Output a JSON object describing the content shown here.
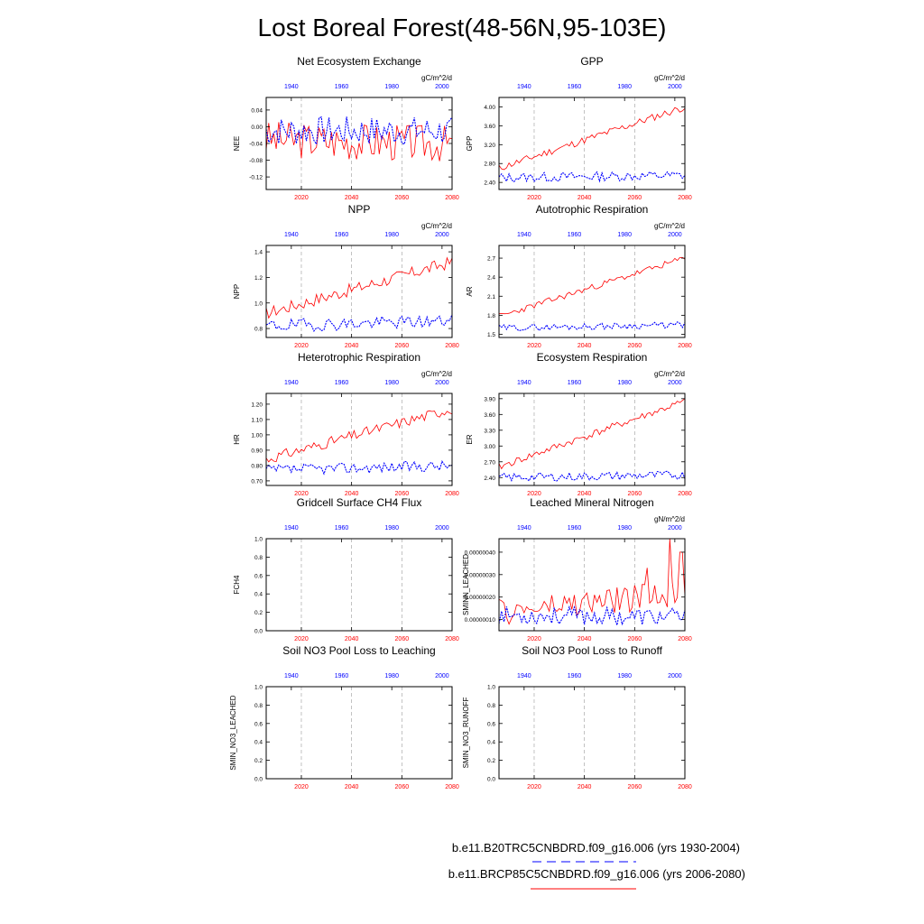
{
  "title": "Lost Boreal Forest(48-56N,95-103E)",
  "colors": {
    "hist": "#0000ff",
    "rcp": "#ff0000",
    "axis": "#000000",
    "grid": "#999999"
  },
  "axes": {
    "bottom_ticks": [
      2020,
      2040,
      2060,
      2080
    ],
    "bottom_tick_labels": [
      "2020",
      "2040",
      "2060",
      "2080"
    ],
    "bottom_range": [
      2006,
      2080
    ],
    "top_ticks": [
      1940,
      1960,
      1980,
      2000
    ],
    "top_tick_labels": [
      "1940",
      "1960",
      "1980",
      "2000"
    ],
    "top_range": [
      1930,
      2004
    ]
  },
  "legend": {
    "hist_label": "b.e11.B20TRC5CNBDRD.f09_g16.006 (yrs 1930-2004)",
    "rcp_label": "b.e11.BRCP85C5CNBDRD.f09_g16.006 (yrs 2006-2080)"
  },
  "chart_data": [
    {
      "type": "line",
      "title": "Net Ecosystem Exchange",
      "units": "gC/m^2/d",
      "ylabel": "NEE",
      "ylim": [
        -0.15,
        0.07
      ],
      "yticks": [
        0.04,
        0.0,
        -0.04,
        -0.08,
        -0.12
      ],
      "ytick_labels": [
        "0.04",
        "0.00",
        "-0.04",
        "-0.08",
        "-0.12"
      ],
      "series": [
        {
          "era": "rcp",
          "start": -0.03,
          "end": -0.04,
          "noise": 0.045,
          "seed": 3
        },
        {
          "era": "hist",
          "start": -0.01,
          "end": -0.01,
          "noise": 0.035,
          "seed": 7
        }
      ]
    },
    {
      "type": "line",
      "title": "GPP",
      "units": "gC/m^2/d",
      "ylabel": "GPP",
      "ylim": [
        2.25,
        4.2
      ],
      "yticks": [
        4.0,
        3.6,
        3.2,
        2.8,
        2.4
      ],
      "ytick_labels": [
        "4.00",
        "3.60",
        "3.20",
        "2.80",
        "2.40"
      ],
      "series": [
        {
          "era": "rcp",
          "start": 2.7,
          "end": 4.0,
          "noise": 0.08,
          "seed": 11
        },
        {
          "era": "hist",
          "start": 2.5,
          "end": 2.55,
          "noise": 0.1,
          "seed": 13
        }
      ]
    },
    {
      "type": "line",
      "title": "NPP",
      "units": "gC/m^2/d",
      "ylabel": "NPP",
      "ylim": [
        0.73,
        1.45
      ],
      "yticks": [
        1.4,
        1.2,
        1.0,
        0.8
      ],
      "ytick_labels": [
        "1.4",
        "1.2",
        "1.0",
        "0.8"
      ],
      "series": [
        {
          "era": "rcp",
          "start": 0.92,
          "end": 1.32,
          "noise": 0.05,
          "seed": 17
        },
        {
          "era": "hist",
          "start": 0.82,
          "end": 0.86,
          "noise": 0.05,
          "seed": 19
        }
      ]
    },
    {
      "type": "line",
      "title": "Autotrophic Respiration",
      "units": "gC/m^2/d",
      "ylabel": "AR",
      "ylim": [
        1.45,
        2.9
      ],
      "yticks": [
        2.7,
        2.4,
        2.1,
        1.8,
        1.5
      ],
      "ytick_labels": [
        "2.7",
        "2.4",
        "2.1",
        "1.8",
        "1.5"
      ],
      "series": [
        {
          "era": "rcp",
          "start": 1.78,
          "end": 2.7,
          "noise": 0.05,
          "seed": 23
        },
        {
          "era": "hist",
          "start": 1.6,
          "end": 1.65,
          "noise": 0.05,
          "seed": 29
        }
      ]
    },
    {
      "type": "line",
      "title": "Heterotrophic Respiration",
      "units": "gC/m^2/d",
      "ylabel": "HR",
      "ylim": [
        0.67,
        1.27
      ],
      "yticks": [
        1.2,
        1.1,
        1.0,
        0.9,
        0.8,
        0.7
      ],
      "ytick_labels": [
        "1.20",
        "1.10",
        "1.00",
        "0.90",
        "0.80",
        "0.70"
      ],
      "series": [
        {
          "era": "rcp",
          "start": 0.84,
          "end": 1.17,
          "noise": 0.035,
          "seed": 31
        },
        {
          "era": "hist",
          "start": 0.77,
          "end": 0.8,
          "noise": 0.035,
          "seed": 37
        }
      ]
    },
    {
      "type": "line",
      "title": "Ecosystem Respiration",
      "units": "gC/m^2/d",
      "ylabel": "ER",
      "ylim": [
        2.25,
        4.0
      ],
      "yticks": [
        3.9,
        3.6,
        3.3,
        3.0,
        2.7,
        2.4
      ],
      "ytick_labels": [
        "3.90",
        "3.60",
        "3.30",
        "3.00",
        "2.70",
        "2.40"
      ],
      "series": [
        {
          "era": "rcp",
          "start": 2.6,
          "end": 3.85,
          "noise": 0.07,
          "seed": 41
        },
        {
          "era": "hist",
          "start": 2.4,
          "end": 2.45,
          "noise": 0.08,
          "seed": 43
        }
      ]
    },
    {
      "type": "line",
      "title": "Gridcell Surface CH4 Flux",
      "units": "",
      "ylabel": "FCH4",
      "ylim": [
        0,
        1
      ],
      "yticks": [
        1.0,
        0.8,
        0.6,
        0.4,
        0.2,
        0.0
      ],
      "ytick_labels": [
        "1.0",
        "0.8",
        "0.6",
        "0.4",
        "0.2",
        "0.0"
      ],
      "series": []
    },
    {
      "type": "line",
      "title": "Leached Mineral Nitrogen",
      "units": "gN/m^2/d",
      "ylabel": "SMINN_LEACHED",
      "ylim": [
        5e-08,
        4.6e-07
      ],
      "yticks": [
        4e-07,
        3e-07,
        2e-07,
        1e-07
      ],
      "ytick_labels": [
        "0.00000040",
        "0.00000030",
        "0.00000020",
        "0.00000010"
      ],
      "series": [
        {
          "era": "rcp",
          "start": 1.3e-07,
          "end": 2.2e-07,
          "noise": 6e-08,
          "seed": 47,
          "spikes": [
            [
              0.92,
              4.6e-07
            ],
            [
              0.98,
              4e-07
            ],
            [
              0.8,
              3.3e-07
            ]
          ]
        },
        {
          "era": "hist",
          "start": 1.2e-07,
          "end": 1.1e-07,
          "noise": 4e-08,
          "seed": 53
        }
      ]
    },
    {
      "type": "line",
      "title": "Soil NO3 Pool Loss to Leaching",
      "units": "",
      "ylabel": "SMIN_NO3_LEACHED",
      "ylim": [
        0,
        1
      ],
      "yticks": [
        1.0,
        0.8,
        0.6,
        0.4,
        0.2,
        0.0
      ],
      "ytick_labels": [
        "1.0",
        "0.8",
        "0.6",
        "0.4",
        "0.2",
        "0.0"
      ],
      "series": []
    },
    {
      "type": "line",
      "title": "Soil NO3 Pool Loss to Runoff",
      "units": "",
      "ylabel": "SMIN_NO3_RUNOFF",
      "ylim": [
        0,
        1
      ],
      "yticks": [
        1.0,
        0.8,
        0.6,
        0.4,
        0.2,
        0.0
      ],
      "ytick_labels": [
        "1.0",
        "0.8",
        "0.6",
        "0.4",
        "0.2",
        "0.0"
      ],
      "series": []
    }
  ]
}
